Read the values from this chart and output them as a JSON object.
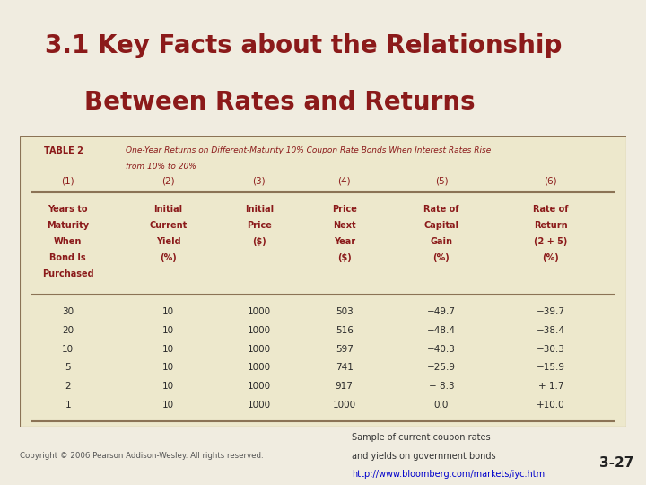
{
  "title_line1": "3.1 Key Facts about the Relationship",
  "title_line2": "Between Rates and Returns",
  "title_color": "#8B1A1A",
  "header_bg": "#b0a898",
  "table_bg": "#ede8cc",
  "table_border_color": "#8B7355",
  "table2_label": "TABLE 2",
  "table2_desc_line1": "One-Year Returns on Different-Maturity 10% Coupon Rate Bonds When Interest Rates Rise",
  "table2_desc_line2": "from 10% to 20%",
  "col_numbers": [
    "(1)",
    "(2)",
    "(3)",
    "(4)",
    "(5)",
    "(6)"
  ],
  "col_headers": [
    [
      "Years to",
      "Maturity",
      "When",
      "Bond Is",
      "Purchased"
    ],
    [
      "Initial",
      "Current",
      "Yield",
      "(%)"
    ],
    [
      "Initial",
      "Price",
      "($)"
    ],
    [
      "Price",
      "Next",
      "Year",
      "($)"
    ],
    [
      "Rate of",
      "Capital",
      "Gain",
      "(%)"
    ],
    [
      "Rate of",
      "Return",
      "(2 + 5)",
      "(%)"
    ]
  ],
  "data_rows": [
    [
      "30",
      "10",
      "1000",
      "503",
      "−49.7",
      "−39.7"
    ],
    [
      "20",
      "10",
      "1000",
      "516",
      "−48.4",
      "−38.4"
    ],
    [
      "10",
      "10",
      "1000",
      "597",
      "−40.3",
      "−30.3"
    ],
    [
      "5",
      "10",
      "1000",
      "741",
      "−25.9",
      "−15.9"
    ],
    [
      "2",
      "10",
      "1000",
      "917",
      "− 8.3",
      "+ 1.7"
    ],
    [
      "1",
      "10",
      "1000",
      "1000",
      "0.0",
      "+10.0"
    ]
  ],
  "footer_left": "Copyright © 2006 Pearson Addison-Wesley. All rights reserved.",
  "footer_mid_line1": "Sample of current coupon rates",
  "footer_mid_line2": "and yields on government bonds",
  "footer_link": "http://www.bloomberg.com/markets/iyc.html",
  "footer_page": "3-27",
  "bg_header_color": "#b0a898",
  "bg_main_color": "#f0ece0"
}
